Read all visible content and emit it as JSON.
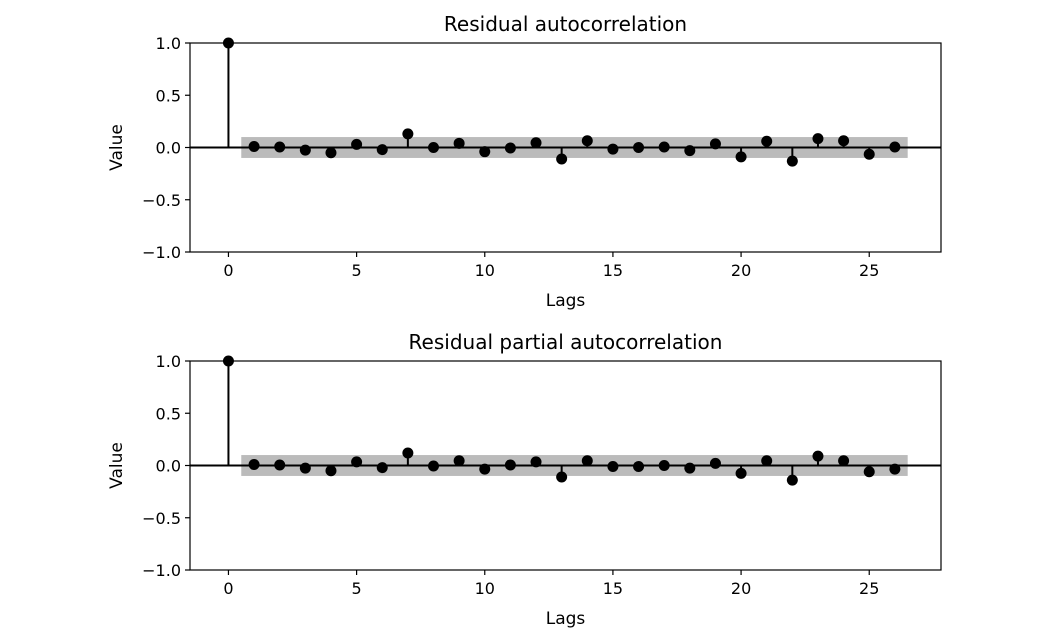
{
  "chart_data": [
    {
      "type": "stem",
      "title": "Residual autocorrelation",
      "xlabel": "Lags",
      "ylabel": "Value",
      "xlim": [
        -1.5,
        27.8
      ],
      "ylim": [
        -1.0,
        1.0
      ],
      "xticks": [
        0,
        5,
        10,
        15,
        20,
        25
      ],
      "xtick_labels": [
        "0",
        "5",
        "10",
        "15",
        "20",
        "25"
      ],
      "yticks": [
        1.0,
        0.5,
        0.0,
        -0.5,
        -1.0
      ],
      "ytick_labels": [
        "1.0",
        "0.5",
        "0.0",
        "−0.5",
        "−1.0"
      ],
      "confidence_band": [
        -0.1,
        0.1
      ],
      "band_color": "#bbbbbb",
      "marker_color": "#000000",
      "x": [
        0,
        1,
        2,
        3,
        4,
        5,
        6,
        7,
        8,
        9,
        10,
        11,
        12,
        13,
        14,
        15,
        16,
        17,
        18,
        19,
        20,
        21,
        22,
        23,
        24,
        25,
        26
      ],
      "values": [
        1.0,
        0.01,
        0.005,
        -0.025,
        -0.05,
        0.03,
        -0.02,
        0.13,
        0.0,
        0.04,
        -0.04,
        -0.005,
        0.045,
        -0.11,
        0.065,
        -0.015,
        0.0,
        0.005,
        -0.03,
        0.035,
        -0.09,
        0.06,
        -0.13,
        0.085,
        0.065,
        -0.065,
        0.005
      ]
    },
    {
      "type": "stem",
      "title": "Residual partial autocorrelation",
      "xlabel": "Lags",
      "ylabel": "Value",
      "xlim": [
        -1.5,
        27.8
      ],
      "ylim": [
        -1.0,
        1.0
      ],
      "xticks": [
        0,
        5,
        10,
        15,
        20,
        25
      ],
      "xtick_labels": [
        "0",
        "5",
        "10",
        "15",
        "20",
        "25"
      ],
      "yticks": [
        1.0,
        0.5,
        0.0,
        -0.5,
        -1.0
      ],
      "ytick_labels": [
        "1.0",
        "0.5",
        "0.0",
        "−0.5",
        "−1.0"
      ],
      "confidence_band": [
        -0.1,
        0.1
      ],
      "band_color": "#bbbbbb",
      "marker_color": "#000000",
      "x": [
        0,
        1,
        2,
        3,
        4,
        5,
        6,
        7,
        8,
        9,
        10,
        11,
        12,
        13,
        14,
        15,
        16,
        17,
        18,
        19,
        20,
        21,
        22,
        23,
        24,
        25,
        26
      ],
      "values": [
        1.0,
        0.01,
        0.005,
        -0.025,
        -0.05,
        0.035,
        -0.02,
        0.12,
        -0.005,
        0.045,
        -0.035,
        0.005,
        0.035,
        -0.11,
        0.045,
        -0.01,
        -0.01,
        0.0,
        -0.025,
        0.02,
        -0.075,
        0.045,
        -0.14,
        0.09,
        0.045,
        -0.06,
        -0.035
      ]
    }
  ]
}
